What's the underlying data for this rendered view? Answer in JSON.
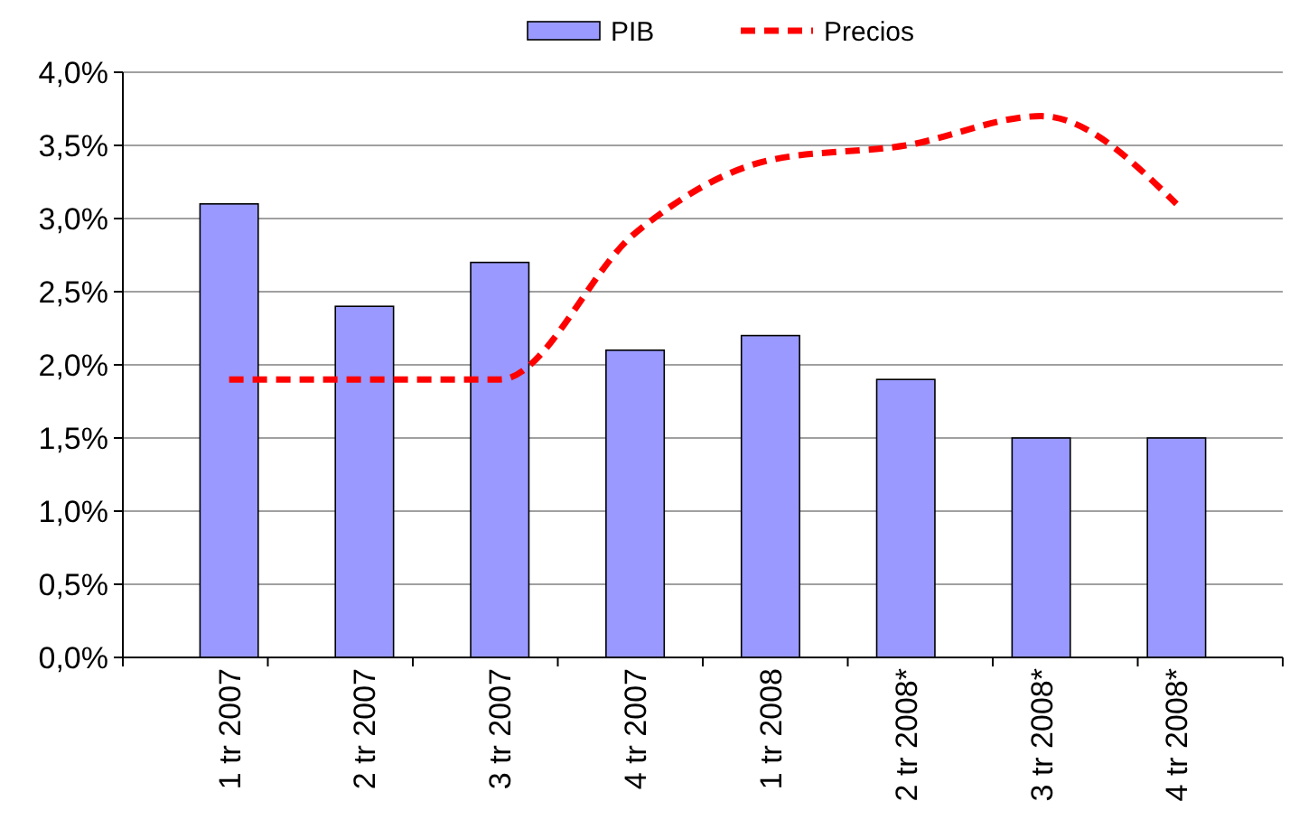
{
  "chart_data": {
    "type": "bar",
    "categories": [
      "1 tr 2007",
      "2 tr 2007",
      "3 tr 2007",
      "4 tr 2007",
      "1 tr 2008",
      "2 tr 2008*",
      "3 tr 2008*",
      "4 tr 2008*"
    ],
    "series": [
      {
        "name": "PIB",
        "color": "#9999ff",
        "values": [
          3.1,
          2.4,
          2.7,
          2.1,
          2.2,
          1.9,
          1.5,
          1.5
        ]
      },
      {
        "name": "Precios",
        "type": "line",
        "color": "#ff0000",
        "line_style": "dashed",
        "values": [
          1.9,
          1.9,
          1.9,
          2.9,
          3.4,
          3.5,
          3.7,
          3.1
        ]
      }
    ],
    "ylim": [
      0,
      4
    ],
    "yticks": [
      {
        "value": 0,
        "label": "0,0%"
      },
      {
        "value": 0.5,
        "label": "0,5%"
      },
      {
        "value": 1,
        "label": "1,0%"
      },
      {
        "value": 1.5,
        "label": "1,5%"
      },
      {
        "value": 2,
        "label": "2,0%"
      },
      {
        "value": 2.5,
        "label": "2,5%"
      },
      {
        "value": 3,
        "label": "3,0%"
      },
      {
        "value": 3.5,
        "label": "3,5%"
      },
      {
        "value": 4,
        "label": "4,0%"
      }
    ],
    "grid": "y",
    "legend": "top"
  }
}
